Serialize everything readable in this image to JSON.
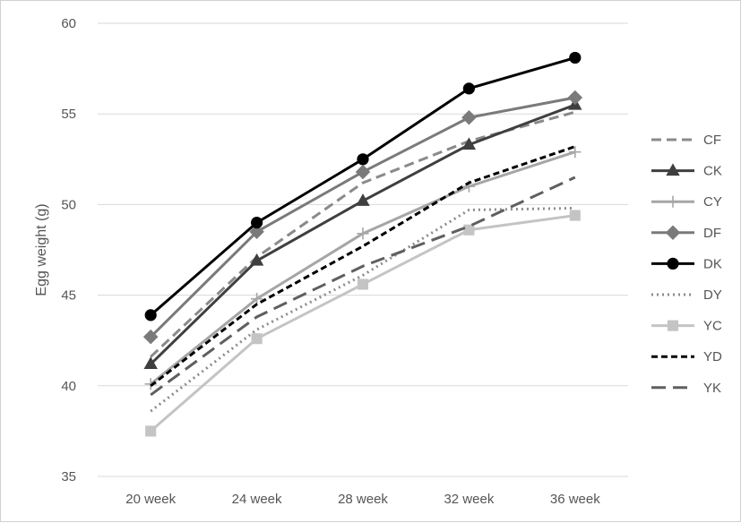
{
  "chart_data": {
    "type": "line",
    "title": "",
    "xlabel": "",
    "ylabel": "Egg weight (g)",
    "categories": [
      "20 week",
      "24 week",
      "28 week",
      "32 week",
      "36 week"
    ],
    "ylim": [
      35,
      60
    ],
    "yticks": [
      "35",
      "40",
      "45",
      "50",
      "55",
      "60"
    ],
    "grid": "horizontal",
    "legend_position": "right",
    "series": [
      {
        "name": "CF",
        "values": [
          41.6,
          47.1,
          51.2,
          53.5,
          55.1
        ],
        "color": "#8a8a8a",
        "dash": "dash",
        "marker": "none"
      },
      {
        "name": "CK",
        "values": [
          41.2,
          46.9,
          50.2,
          53.3,
          55.5
        ],
        "color": "#3f3f3f",
        "dash": "solid",
        "marker": "triangle"
      },
      {
        "name": "CY",
        "values": [
          40.1,
          44.8,
          48.4,
          51.0,
          52.9
        ],
        "color": "#a6a6a6",
        "dash": "solid",
        "marker": "plus"
      },
      {
        "name": "DF",
        "values": [
          42.7,
          48.5,
          51.8,
          54.8,
          55.9
        ],
        "color": "#7a7a7a",
        "dash": "solid",
        "marker": "diamond"
      },
      {
        "name": "DK",
        "values": [
          43.9,
          49.0,
          52.5,
          56.4,
          58.1
        ],
        "color": "#000000",
        "dash": "solid",
        "marker": "circle"
      },
      {
        "name": "DY",
        "values": [
          38.6,
          43.1,
          46.1,
          49.7,
          49.8
        ],
        "color": "#8c8c8c",
        "dash": "dot",
        "marker": "none"
      },
      {
        "name": "YC",
        "values": [
          37.5,
          42.6,
          45.6,
          48.6,
          49.4
        ],
        "color": "#c4c4c4",
        "dash": "solid",
        "marker": "square"
      },
      {
        "name": "YD",
        "values": [
          40.0,
          44.5,
          47.7,
          51.2,
          53.2
        ],
        "color": "#000000",
        "dash": "shortdash",
        "marker": "none"
      },
      {
        "name": "YK",
        "values": [
          39.5,
          43.8,
          46.6,
          48.8,
          51.5
        ],
        "color": "#5f5f5f",
        "dash": "longdash",
        "marker": "none"
      }
    ]
  }
}
